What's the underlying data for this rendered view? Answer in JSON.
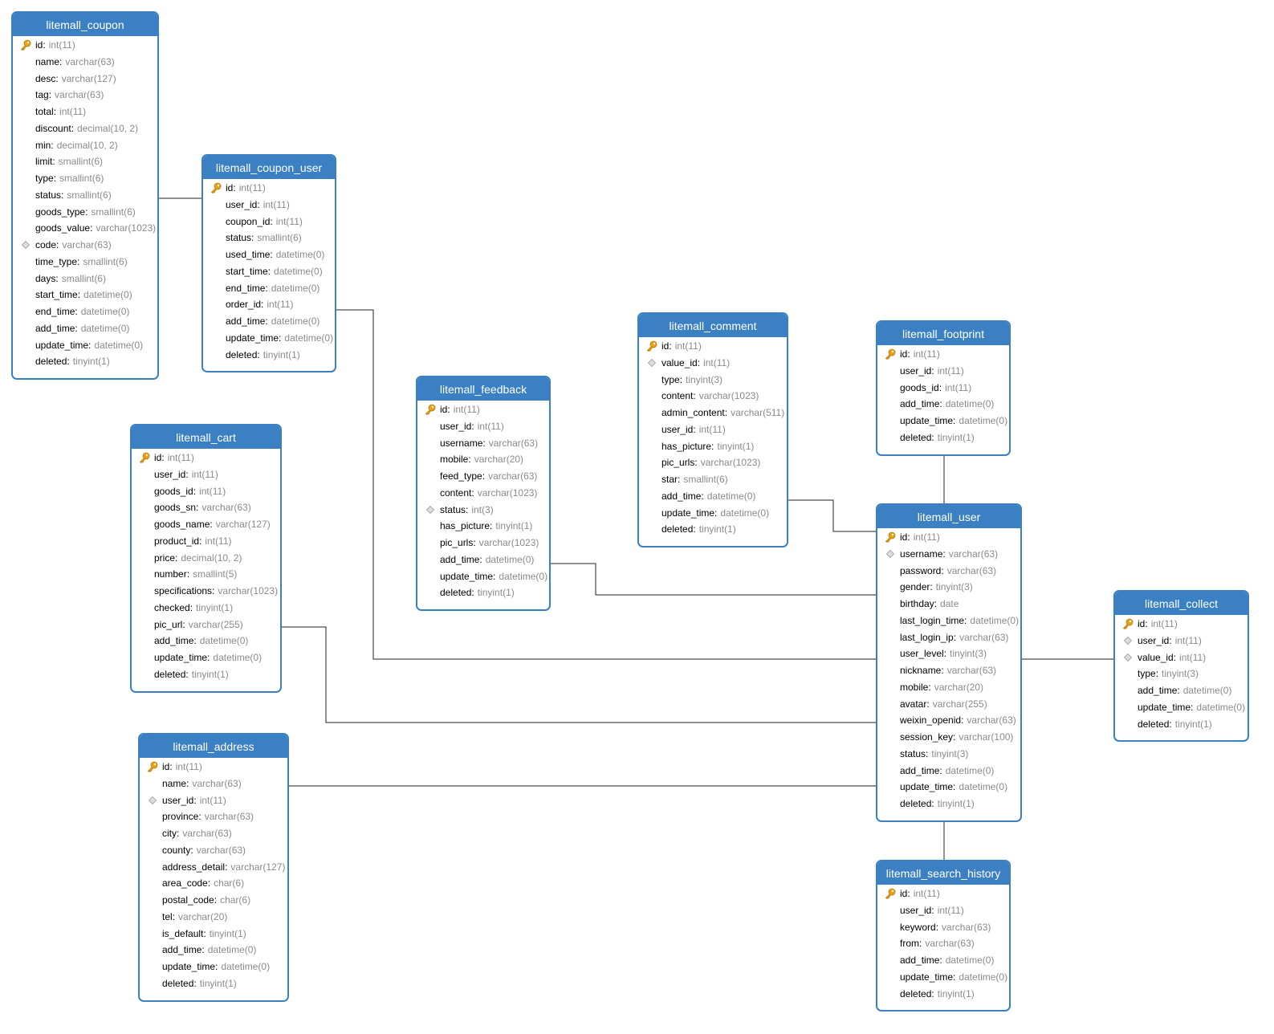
{
  "tables": [
    {
      "name": "litemall_coupon",
      "columns": [
        {
          "name": "id",
          "type": "int(11)",
          "icon": "key"
        },
        {
          "name": "name",
          "type": "varchar(63)"
        },
        {
          "name": "desc",
          "type": "varchar(127)"
        },
        {
          "name": "tag",
          "type": "varchar(63)"
        },
        {
          "name": "total",
          "type": "int(11)"
        },
        {
          "name": "discount",
          "type": "decimal(10, 2)"
        },
        {
          "name": "min",
          "type": "decimal(10, 2)"
        },
        {
          "name": "limit",
          "type": "smallint(6)"
        },
        {
          "name": "type",
          "type": "smallint(6)"
        },
        {
          "name": "status",
          "type": "smallint(6)"
        },
        {
          "name": "goods_type",
          "type": "smallint(6)"
        },
        {
          "name": "goods_value",
          "type": "varchar(1023)"
        },
        {
          "name": "code",
          "type": "varchar(63)",
          "icon": "diamond"
        },
        {
          "name": "time_type",
          "type": "smallint(6)"
        },
        {
          "name": "days",
          "type": "smallint(6)"
        },
        {
          "name": "start_time",
          "type": "datetime(0)"
        },
        {
          "name": "end_time",
          "type": "datetime(0)"
        },
        {
          "name": "add_time",
          "type": "datetime(0)"
        },
        {
          "name": "update_time",
          "type": "datetime(0)"
        },
        {
          "name": "deleted",
          "type": "tinyint(1)"
        }
      ]
    },
    {
      "name": "litemall_coupon_user",
      "columns": [
        {
          "name": "id",
          "type": "int(11)",
          "icon": "key"
        },
        {
          "name": "user_id",
          "type": "int(11)"
        },
        {
          "name": "coupon_id",
          "type": "int(11)"
        },
        {
          "name": "status",
          "type": "smallint(6)"
        },
        {
          "name": "used_time",
          "type": "datetime(0)"
        },
        {
          "name": "start_time",
          "type": "datetime(0)"
        },
        {
          "name": "end_time",
          "type": "datetime(0)"
        },
        {
          "name": "order_id",
          "type": "int(11)"
        },
        {
          "name": "add_time",
          "type": "datetime(0)"
        },
        {
          "name": "update_time",
          "type": "datetime(0)"
        },
        {
          "name": "deleted",
          "type": "tinyint(1)"
        }
      ]
    },
    {
      "name": "litemall_cart",
      "columns": [
        {
          "name": "id",
          "type": "int(11)",
          "icon": "key"
        },
        {
          "name": "user_id",
          "type": "int(11)"
        },
        {
          "name": "goods_id",
          "type": "int(11)"
        },
        {
          "name": "goods_sn",
          "type": "varchar(63)"
        },
        {
          "name": "goods_name",
          "type": "varchar(127)"
        },
        {
          "name": "product_id",
          "type": "int(11)"
        },
        {
          "name": "price",
          "type": "decimal(10, 2)"
        },
        {
          "name": "number",
          "type": "smallint(5)"
        },
        {
          "name": "specifications",
          "type": "varchar(1023)"
        },
        {
          "name": "checked",
          "type": "tinyint(1)"
        },
        {
          "name": "pic_url",
          "type": "varchar(255)"
        },
        {
          "name": "add_time",
          "type": "datetime(0)"
        },
        {
          "name": "update_time",
          "type": "datetime(0)"
        },
        {
          "name": "deleted",
          "type": "tinyint(1)"
        }
      ]
    },
    {
      "name": "litemall_address",
      "columns": [
        {
          "name": "id",
          "type": "int(11)",
          "icon": "key"
        },
        {
          "name": "name",
          "type": "varchar(63)"
        },
        {
          "name": "user_id",
          "type": "int(11)",
          "icon": "diamond"
        },
        {
          "name": "province",
          "type": "varchar(63)"
        },
        {
          "name": "city",
          "type": "varchar(63)"
        },
        {
          "name": "county",
          "type": "varchar(63)"
        },
        {
          "name": "address_detail",
          "type": "varchar(127)"
        },
        {
          "name": "area_code",
          "type": "char(6)"
        },
        {
          "name": "postal_code",
          "type": "char(6)"
        },
        {
          "name": "tel",
          "type": "varchar(20)"
        },
        {
          "name": "is_default",
          "type": "tinyint(1)"
        },
        {
          "name": "add_time",
          "type": "datetime(0)"
        },
        {
          "name": "update_time",
          "type": "datetime(0)"
        },
        {
          "name": "deleted",
          "type": "tinyint(1)"
        }
      ]
    },
    {
      "name": "litemall_feedback",
      "columns": [
        {
          "name": "id",
          "type": "int(11)",
          "icon": "key"
        },
        {
          "name": "user_id",
          "type": "int(11)"
        },
        {
          "name": "username",
          "type": "varchar(63)"
        },
        {
          "name": "mobile",
          "type": "varchar(20)"
        },
        {
          "name": "feed_type",
          "type": "varchar(63)"
        },
        {
          "name": "content",
          "type": "varchar(1023)"
        },
        {
          "name": "status",
          "type": "int(3)",
          "icon": "diamond"
        },
        {
          "name": "has_picture",
          "type": "tinyint(1)"
        },
        {
          "name": "pic_urls",
          "type": "varchar(1023)"
        },
        {
          "name": "add_time",
          "type": "datetime(0)"
        },
        {
          "name": "update_time",
          "type": "datetime(0)"
        },
        {
          "name": "deleted",
          "type": "tinyint(1)"
        }
      ]
    },
    {
      "name": "litemall_comment",
      "columns": [
        {
          "name": "id",
          "type": "int(11)",
          "icon": "key"
        },
        {
          "name": "value_id",
          "type": "int(11)",
          "icon": "diamond"
        },
        {
          "name": "type",
          "type": "tinyint(3)"
        },
        {
          "name": "content",
          "type": "varchar(1023)"
        },
        {
          "name": "admin_content",
          "type": "varchar(511)"
        },
        {
          "name": "user_id",
          "type": "int(11)"
        },
        {
          "name": "has_picture",
          "type": "tinyint(1)"
        },
        {
          "name": "pic_urls",
          "type": "varchar(1023)"
        },
        {
          "name": "star",
          "type": "smallint(6)"
        },
        {
          "name": "add_time",
          "type": "datetime(0)"
        },
        {
          "name": "update_time",
          "type": "datetime(0)"
        },
        {
          "name": "deleted",
          "type": "tinyint(1)"
        }
      ]
    },
    {
      "name": "litemall_footprint",
      "columns": [
        {
          "name": "id",
          "type": "int(11)",
          "icon": "key"
        },
        {
          "name": "user_id",
          "type": "int(11)"
        },
        {
          "name": "goods_id",
          "type": "int(11)"
        },
        {
          "name": "add_time",
          "type": "datetime(0)"
        },
        {
          "name": "update_time",
          "type": "datetime(0)"
        },
        {
          "name": "deleted",
          "type": "tinyint(1)"
        }
      ]
    },
    {
      "name": "litemall_user",
      "columns": [
        {
          "name": "id",
          "type": "int(11)",
          "icon": "key"
        },
        {
          "name": "username",
          "type": "varchar(63)",
          "icon": "diamond"
        },
        {
          "name": "password",
          "type": "varchar(63)"
        },
        {
          "name": "gender",
          "type": "tinyint(3)"
        },
        {
          "name": "birthday",
          "type": "date"
        },
        {
          "name": "last_login_time",
          "type": "datetime(0)"
        },
        {
          "name": "last_login_ip",
          "type": "varchar(63)"
        },
        {
          "name": "user_level",
          "type": "tinyint(3)"
        },
        {
          "name": "nickname",
          "type": "varchar(63)"
        },
        {
          "name": "mobile",
          "type": "varchar(20)"
        },
        {
          "name": "avatar",
          "type": "varchar(255)"
        },
        {
          "name": "weixin_openid",
          "type": "varchar(63)"
        },
        {
          "name": "session_key",
          "type": "varchar(100)"
        },
        {
          "name": "status",
          "type": "tinyint(3)"
        },
        {
          "name": "add_time",
          "type": "datetime(0)"
        },
        {
          "name": "update_time",
          "type": "datetime(0)"
        },
        {
          "name": "deleted",
          "type": "tinyint(1)"
        }
      ]
    },
    {
      "name": "litemall_collect",
      "columns": [
        {
          "name": "id",
          "type": "int(11)",
          "icon": "key"
        },
        {
          "name": "user_id",
          "type": "int(11)",
          "icon": "diamond"
        },
        {
          "name": "value_id",
          "type": "int(11)",
          "icon": "diamond"
        },
        {
          "name": "type",
          "type": "tinyint(3)"
        },
        {
          "name": "add_time",
          "type": "datetime(0)"
        },
        {
          "name": "update_time",
          "type": "datetime(0)"
        },
        {
          "name": "deleted",
          "type": "tinyint(1)"
        }
      ]
    },
    {
      "name": "litemall_search_history",
      "columns": [
        {
          "name": "id",
          "type": "int(11)",
          "icon": "key"
        },
        {
          "name": "user_id",
          "type": "int(11)"
        },
        {
          "name": "keyword",
          "type": "varchar(63)"
        },
        {
          "name": "from",
          "type": "varchar(63)"
        },
        {
          "name": "add_time",
          "type": "datetime(0)"
        },
        {
          "name": "update_time",
          "type": "datetime(0)"
        },
        {
          "name": "deleted",
          "type": "tinyint(1)"
        }
      ]
    }
  ]
}
